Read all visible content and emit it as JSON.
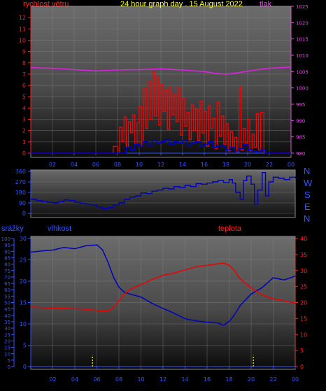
{
  "header": {
    "wind_label": "rychlost větru",
    "title": "24 hour graph day . 15 August 2022",
    "pressure_label": "tlak"
  },
  "compass": [
    "N",
    "W",
    "S",
    "E",
    "N"
  ],
  "bottom_labels": {
    "rain": "srážky",
    "humidity": "vlhkost",
    "temperature": "teplota"
  },
  "colors": {
    "wind": "#ff0000",
    "gust": "#0000cc",
    "pressure": "#dd22dd",
    "direction": "#0000bb",
    "humidity": "#0000bb",
    "temperature": "#ee0000",
    "rain": "#ffff00",
    "wind_axis": "#ff2222",
    "pressure_axis": "#ee44ee",
    "rain_axis": "#3355ff",
    "humidity_axis": "#3355ff",
    "temp_axis": "#ff2222",
    "time_axis": "#3355ff",
    "title": "#ffff33"
  },
  "chart_data": [
    {
      "type": "line",
      "panel": "wind-pressure",
      "x_ticks": [
        "02",
        "04",
        "06",
        "08",
        "10",
        "12",
        "14",
        "16",
        "18",
        "20",
        "22",
        "00"
      ],
      "y_left_ticks": [
        "0",
        "1",
        "2",
        "3",
        "4",
        "5",
        "6",
        "7",
        "8",
        "9",
        "10",
        "11",
        "12"
      ],
      "y_left_range": [
        0,
        13
      ],
      "y_right_ticks": [
        "980",
        "985",
        "990",
        "995",
        "1000",
        "1005",
        "1010",
        "1015",
        "1020",
        "1025"
      ],
      "y_right_range": [
        980,
        1025
      ],
      "series": [
        {
          "name": "rychlost větru",
          "axis": "left",
          "x": [
            0,
            7.5,
            7.6,
            8,
            8.2,
            8.4,
            8.6,
            8.8,
            9,
            9.2,
            9.4,
            9.6,
            9.8,
            10,
            10.2,
            10.4,
            10.6,
            10.8,
            11,
            11.2,
            11.4,
            11.6,
            11.8,
            12,
            12.2,
            12.4,
            12.6,
            12.8,
            13,
            13.2,
            13.4,
            13.6,
            13.8,
            14,
            14.2,
            14.4,
            14.6,
            14.8,
            15,
            15.2,
            15.4,
            15.6,
            15.8,
            16,
            16.2,
            16.4,
            16.6,
            16.8,
            17,
            17.2,
            17.4,
            17.6,
            17.8,
            18,
            18.2,
            18.4,
            18.6,
            18.8,
            19,
            19.2,
            19.4,
            19.6,
            19.8,
            20,
            20.2,
            20.4,
            20.6,
            20.8,
            21,
            21.2,
            21.5,
            22,
            23,
            24
          ],
          "values": [
            0,
            0,
            0.6,
            0,
            2.3,
            1,
            3.2,
            0.5,
            2.8,
            1.8,
            3.4,
            0.8,
            2.7,
            4.1,
            0.6,
            5.7,
            2.2,
            6.4,
            3,
            7.2,
            3.3,
            6.8,
            2.5,
            6.1,
            3.7,
            5.6,
            2.1,
            5.9,
            3.4,
            5.2,
            2.8,
            5.8,
            1.6,
            4.9,
            2.4,
            3.6,
            1.2,
            4.3,
            2,
            3.9,
            1.1,
            4.6,
            1.8,
            3.7,
            0.6,
            4.2,
            2.2,
            3.1,
            0.4,
            4.5,
            1.5,
            3.3,
            0.8,
            2.6,
            0.2,
            1.9,
            0.5,
            1.4,
            0.1,
            5.9,
            0.3,
            2.2,
            0.9,
            3,
            0.2,
            1.7,
            0.5,
            3.5,
            0.3,
            3.6,
            0,
            0,
            0,
            0
          ]
        },
        {
          "name": "",
          "axis": "left",
          "x": [
            0,
            8.3,
            8.8,
            9.2,
            9.6,
            10,
            10.4,
            10.8,
            11.2,
            11.6,
            12,
            12.4,
            12.8,
            13.2,
            13.6,
            14,
            14.4,
            14.8,
            15.2,
            15.6,
            16,
            16.4,
            16.8,
            17.2,
            17.6,
            18,
            18.4,
            18.8,
            19.2,
            19.6,
            20,
            20.4,
            20.8,
            21.2,
            21.6,
            22,
            24
          ],
          "values": [
            0,
            0,
            0.5,
            0.3,
            0.8,
            0.6,
            1,
            0.7,
            1.1,
            0.9,
            1,
            1.2,
            0.8,
            1,
            0.9,
            1.1,
            0.7,
            0.9,
            1,
            0.6,
            0.8,
            1,
            0.5,
            0.7,
            0.6,
            0.3,
            0.5,
            0.2,
            0.4,
            0.8,
            0.3,
            0.2,
            0.1,
            0.3,
            0,
            0,
            0
          ]
        },
        {
          "name": "tlak",
          "axis": "right",
          "x": [
            0,
            2,
            4,
            6,
            8,
            10,
            12,
            14,
            16,
            17,
            18,
            19,
            20,
            21,
            22,
            23,
            24
          ],
          "values": [
            1006.2,
            1006,
            1005.6,
            1005.2,
            1005.5,
            1005.6,
            1005.8,
            1005.5,
            1005,
            1004.5,
            1004.2,
            1004.6,
            1005.1,
            1005.6,
            1006,
            1006.2,
            1006.4
          ]
        }
      ]
    },
    {
      "type": "line",
      "panel": "wind-direction",
      "x_ticks": [],
      "y_ticks": [
        "0",
        "90",
        "180",
        "270",
        "360"
      ],
      "y_range": [
        0,
        360
      ],
      "series": [
        {
          "name": "",
          "x": [
            0,
            0.5,
            1,
            1.5,
            2,
            2.5,
            3,
            3.5,
            4,
            4.5,
            5,
            5.5,
            6,
            6.5,
            7,
            7.5,
            8,
            8.5,
            9,
            9.5,
            10,
            10.5,
            11,
            11.5,
            12,
            12.5,
            13,
            13.5,
            14,
            14.5,
            15,
            15.5,
            16,
            16.5,
            17,
            17.5,
            18,
            18.3,
            18.6,
            19,
            19.3,
            19.6,
            20,
            20.3,
            20.6,
            21,
            21.3,
            21.6,
            22,
            22.5,
            23,
            23.5,
            24
          ],
          "values": [
            120,
            110,
            100,
            95,
            90,
            100,
            115,
            110,
            95,
            85,
            80,
            70,
            55,
            40,
            50,
            70,
            90,
            120,
            140,
            150,
            175,
            170,
            190,
            200,
            215,
            210,
            230,
            220,
            240,
            230,
            255,
            250,
            260,
            270,
            280,
            265,
            290,
            260,
            180,
            120,
            280,
            320,
            250,
            80,
            200,
            350,
            150,
            270,
            310,
            300,
            290,
            310,
            300
          ]
        }
      ]
    },
    {
      "type": "line",
      "panel": "rain-humidity-temperature",
      "x_ticks": [
        "02",
        "04",
        "06",
        "08",
        "10",
        "12",
        "14",
        "16",
        "18",
        "20",
        "22",
        "00"
      ],
      "y_rain_ticks": [
        "0",
        "5",
        "10",
        "15",
        "20",
        "25",
        "30",
        "35",
        "40",
        "45",
        "50",
        "55",
        "60",
        "65",
        "70",
        "75",
        "80",
        "85",
        "90",
        "95",
        "100"
      ],
      "y_rain_range": [
        0,
        100
      ],
      "y_left_ticks": [
        "0",
        "5",
        "10",
        "15",
        "20",
        "25",
        "30"
      ],
      "y_left_range": [
        0,
        30
      ],
      "y_right_ticks": [
        "0",
        "5",
        "10",
        "15",
        "20",
        "25",
        "30",
        "35",
        "40"
      ],
      "y_right_range": [
        0,
        40
      ],
      "series": [
        {
          "name": "vlhkost",
          "axis": "left",
          "x": [
            0,
            1,
            2,
            3,
            4,
            5,
            6,
            6.5,
            7,
            7.5,
            8,
            8.5,
            9,
            10,
            11,
            12,
            13,
            14,
            15,
            16,
            17,
            17.5,
            18,
            18.5,
            19,
            20,
            21,
            22,
            23,
            24
          ],
          "values": [
            26.8,
            27.1,
            27.3,
            27.9,
            27.6,
            28.3,
            28.5,
            27.4,
            24.5,
            21,
            18.6,
            17.4,
            17,
            16.3,
            14.8,
            13.6,
            12.5,
            11.2,
            10.7,
            10.4,
            10.2,
            9.7,
            10.5,
            12.2,
            14.3,
            17,
            18.5,
            20.8,
            20.3,
            21.2
          ]
        },
        {
          "name": "teplota",
          "axis": "right",
          "x": [
            0,
            1,
            2,
            3,
            4,
            5,
            6,
            7,
            7.5,
            8,
            8.5,
            9,
            10,
            11,
            12,
            13,
            14,
            15,
            16,
            17,
            17.5,
            18,
            18.5,
            19,
            20,
            21,
            22,
            23,
            24
          ],
          "values": [
            18.6,
            18.4,
            18.3,
            18.2,
            18.1,
            17.9,
            17.5,
            17.3,
            18.4,
            20.5,
            22.6,
            24.1,
            25.6,
            27.2,
            28.5,
            29.2,
            30.2,
            31.2,
            31.6,
            32.1,
            32.3,
            31.7,
            29.9,
            27.4,
            24.6,
            22.4,
            21.2,
            20.6,
            19.8
          ]
        },
        {
          "name": "srážky",
          "axis": "rain",
          "x": [
            5.6,
            20.2
          ],
          "values": [
            9,
            9
          ]
        }
      ]
    }
  ]
}
